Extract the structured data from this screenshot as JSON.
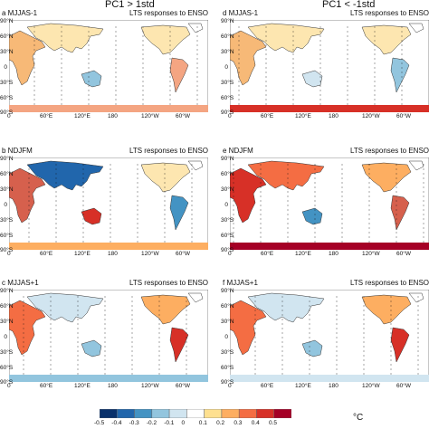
{
  "columns": [
    {
      "title": "PC1 > 1std"
    },
    {
      "title": "PC1 < -1std"
    }
  ],
  "panels": [
    {
      "label": "a MJJAS-1",
      "note": "LTS responses to ENSO"
    },
    {
      "label": "b NDJFM",
      "note": "LTS responses to ENSO"
    },
    {
      "label": "c MJJAS+1",
      "note": "LTS responses to ENSO"
    },
    {
      "label": "d MJJAS-1",
      "note": "LTS responses to ENSO"
    },
    {
      "label": "e NDJFM",
      "note": "LTS responses to ENSO"
    },
    {
      "label": "f MJJAS+1",
      "note": "LTS responses to ENSO"
    }
  ],
  "lat_labels": [
    "90°N",
    "60°N",
    "30°N",
    "0",
    "30°S",
    "60°S",
    "90°S"
  ],
  "lon_labels": [
    "0",
    "60°E",
    "120°E",
    "180",
    "120°W",
    "60°W"
  ],
  "colorbar": {
    "ticks": [
      "-0.5",
      "-0.4",
      "-0.3",
      "-0.2",
      "-0.1",
      "0",
      "0.1",
      "0.2",
      "0.3",
      "0.4",
      "0.5"
    ],
    "unit": "°C",
    "colors": [
      "#08306b",
      "#2166ac",
      "#4393c3",
      "#92c5de",
      "#d1e5f0",
      "#ffffff",
      "#fee090",
      "#fdae61",
      "#f46d43",
      "#d73027",
      "#a50026"
    ]
  }
}
